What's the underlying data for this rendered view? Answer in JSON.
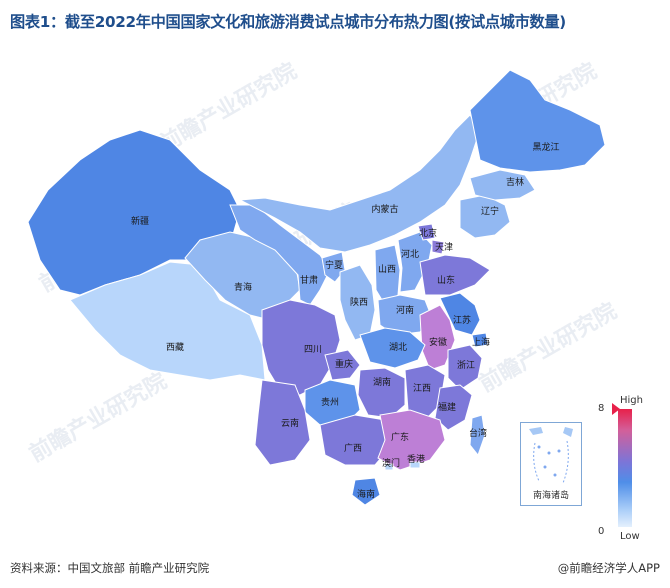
{
  "title": "图表1：截至2022年中国国家文化和旅游消费试点城市分布热力图(按试点城市数量)",
  "watermark_text": "前瞻产业研究院",
  "legend": {
    "high_label": "High",
    "low_label": "Low",
    "max_value": "8",
    "min_value": "0"
  },
  "inset_label": "南海诸岛",
  "source": "资料来源：中国文旅部 前瞻产业研究院",
  "brand": "@前瞻经济学人APP",
  "colors": {
    "c0": "#b8d6fb",
    "c1": "#a6c8f5",
    "c2": "#92b8f2",
    "c3": "#7fa8ef",
    "c4": "#5e93ea",
    "c5": "#4f86e4",
    "c6": "#7d78d9",
    "c7": "#8a7ad8",
    "c8": "#bd7fd6"
  },
  "provinces": [
    {
      "name": "新疆",
      "shade": "c5"
    },
    {
      "name": "西藏",
      "shade": "c0"
    },
    {
      "name": "青海",
      "shade": "c2"
    },
    {
      "name": "甘肃",
      "shade": "c3"
    },
    {
      "name": "内蒙古",
      "shade": "c2"
    },
    {
      "name": "宁夏",
      "shade": "c3"
    },
    {
      "name": "陕西",
      "shade": "c2"
    },
    {
      "name": "山西",
      "shade": "c3"
    },
    {
      "name": "河北",
      "shade": "c3"
    },
    {
      "name": "北京",
      "shade": "c6"
    },
    {
      "name": "天津",
      "shade": "c7"
    },
    {
      "name": "辽宁",
      "shade": "c2"
    },
    {
      "name": "吉林",
      "shade": "c2"
    },
    {
      "name": "黑龙江",
      "shade": "c4"
    },
    {
      "name": "山东",
      "shade": "c6"
    },
    {
      "name": "河南",
      "shade": "c3"
    },
    {
      "name": "江苏",
      "shade": "c5"
    },
    {
      "name": "安徽",
      "shade": "c8"
    },
    {
      "name": "上海",
      "shade": "c5"
    },
    {
      "name": "浙江",
      "shade": "c6"
    },
    {
      "name": "湖北",
      "shade": "c4"
    },
    {
      "name": "四川",
      "shade": "c6"
    },
    {
      "name": "重庆",
      "shade": "c6"
    },
    {
      "name": "湖南",
      "shade": "c6"
    },
    {
      "name": "江西",
      "shade": "c6"
    },
    {
      "name": "福建",
      "shade": "c6"
    },
    {
      "name": "贵州",
      "shade": "c4"
    },
    {
      "name": "云南",
      "shade": "c6"
    },
    {
      "name": "广西",
      "shade": "c6"
    },
    {
      "name": "广东",
      "shade": "c8"
    },
    {
      "name": "澳门",
      "shade": "c0"
    },
    {
      "name": "香港",
      "shade": "c0"
    },
    {
      "name": "海南",
      "shade": "c5"
    },
    {
      "name": "台湾",
      "shade": "c3"
    }
  ]
}
